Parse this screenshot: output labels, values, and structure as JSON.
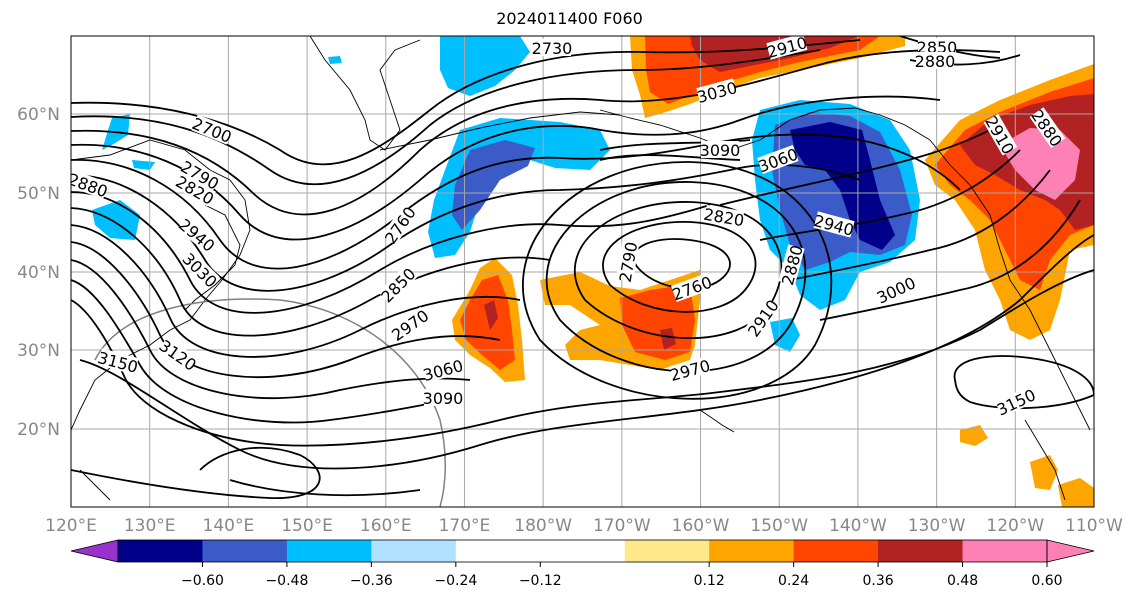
{
  "title": "2024011400 F060",
  "lon_labels": [
    "120°E",
    "130°E",
    "140°E",
    "150°E",
    "160°E",
    "170°E",
    "180°W",
    "170°W",
    "160°W",
    "150°W",
    "140°W",
    "130°W",
    "120°W",
    "110°W"
  ],
  "lat_labels": [
    "60°N",
    "50°N",
    "40°N",
    "30°N",
    "20°N"
  ],
  "colorbar": {
    "colors": [
      "#9932cc",
      "#00008b",
      "#3a5bc8",
      "#00bfff",
      "#b0e2ff",
      "#ffffff",
      "#ffffff",
      "#ffe88a",
      "#ffa500",
      "#ff4500",
      "#b22222",
      "#ff80b4"
    ],
    "tick_labels": [
      "−0.60",
      "−0.48",
      "−0.36",
      "−0.24",
      "−0.12",
      "0.12",
      "0.24",
      "0.36",
      "0.48",
      "0.60"
    ]
  },
  "contour_labels": [
    "2700",
    "2790",
    "2820",
    "2880",
    "2940",
    "3030",
    "3120",
    "3150",
    "2760",
    "2850",
    "2970",
    "3060",
    "3090",
    "2730",
    "2910",
    "3030",
    "3090",
    "3060",
    "2820",
    "2790",
    "2760",
    "2970",
    "2910",
    "2880",
    "2940",
    "3000",
    "2850",
    "2880",
    "2910",
    "2880",
    "3150"
  ]
}
